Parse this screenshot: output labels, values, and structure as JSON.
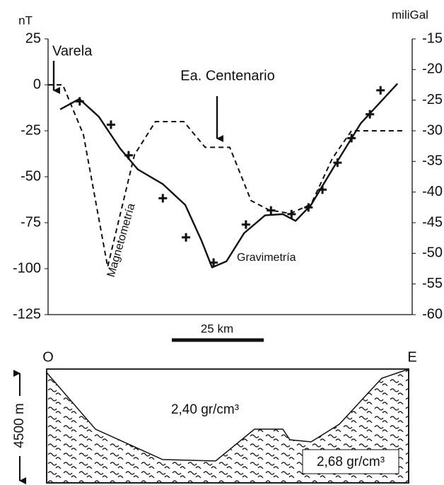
{
  "chart_data": {
    "type": "line",
    "y_label": "nT",
    "y2_label": "miliGal",
    "xlim": [
      0,
      99
    ],
    "ylim": [
      -125,
      25
    ],
    "yticks": [
      25,
      0,
      -25,
      -50,
      -75,
      -100,
      -125
    ],
    "y2lim": [
      -60,
      -15
    ],
    "y2ticks": [
      -15,
      -20,
      -25,
      -30,
      -35,
      -40,
      -45,
      -50,
      -55,
      -60
    ],
    "series": [
      {
        "name": "Magnetometría",
        "color": "#111111",
        "line_style": "dashed",
        "x": [
          0,
          4,
          9.6,
          16.2,
          23.5,
          29.2,
          36.9,
          42.7,
          49.4,
          55.2,
          60,
          65.8,
          71.5,
          77.3,
          82.5,
          96.5
        ],
        "values": [
          0,
          0,
          -27,
          -99,
          -38,
          -20,
          -20,
          -34,
          -34,
          -63,
          -68,
          -70,
          -65,
          -40,
          -25,
          -25
        ]
      },
      {
        "name": "Gravimetría",
        "color": "#111111",
        "line_style": "solid",
        "axis": "y2",
        "x": [
          3.3,
          8.5,
          13.8,
          19.6,
          24.4,
          31.2,
          37.3,
          41.7,
          44.6,
          48.5,
          53.3,
          59,
          63.8,
          67.3,
          71.5,
          77.3,
          85,
          95
        ],
        "values": [
          -26.5,
          -24.8,
          -27.7,
          -32.9,
          -36.3,
          -38.7,
          -42.1,
          -47.9,
          -52.3,
          -51.3,
          -46.7,
          -43.8,
          -43.6,
          -44.7,
          -42.1,
          -36.3,
          -28.8,
          -22.3
        ]
      },
      {
        "color": "#111111",
        "marker": "plus",
        "axis": "y2",
        "x": [
          8.6,
          17.1,
          21.9,
          31.2,
          37.5,
          45,
          53.8,
          60.6,
          66.2,
          70.8,
          74.6,
          78.7,
          82.5,
          87.5,
          90.4
        ],
        "values": [
          -25.2,
          -29,
          -34,
          -41,
          -47.4,
          -51.5,
          -45.3,
          -43,
          -43.6,
          -42.5,
          -39.6,
          -35.2,
          -31.2,
          -27.3,
          -23.4
        ]
      }
    ],
    "annotations": [
      "Varela",
      "Ea. Centenario"
    ],
    "scale_bar": {
      "label": "25 km",
      "length": 25
    }
  },
  "section": {
    "west": "O",
    "east": "E",
    "depth": "4500 m",
    "upper_density": "2,40 gr/cm³",
    "lower_density": "2,68 gr/cm³"
  }
}
